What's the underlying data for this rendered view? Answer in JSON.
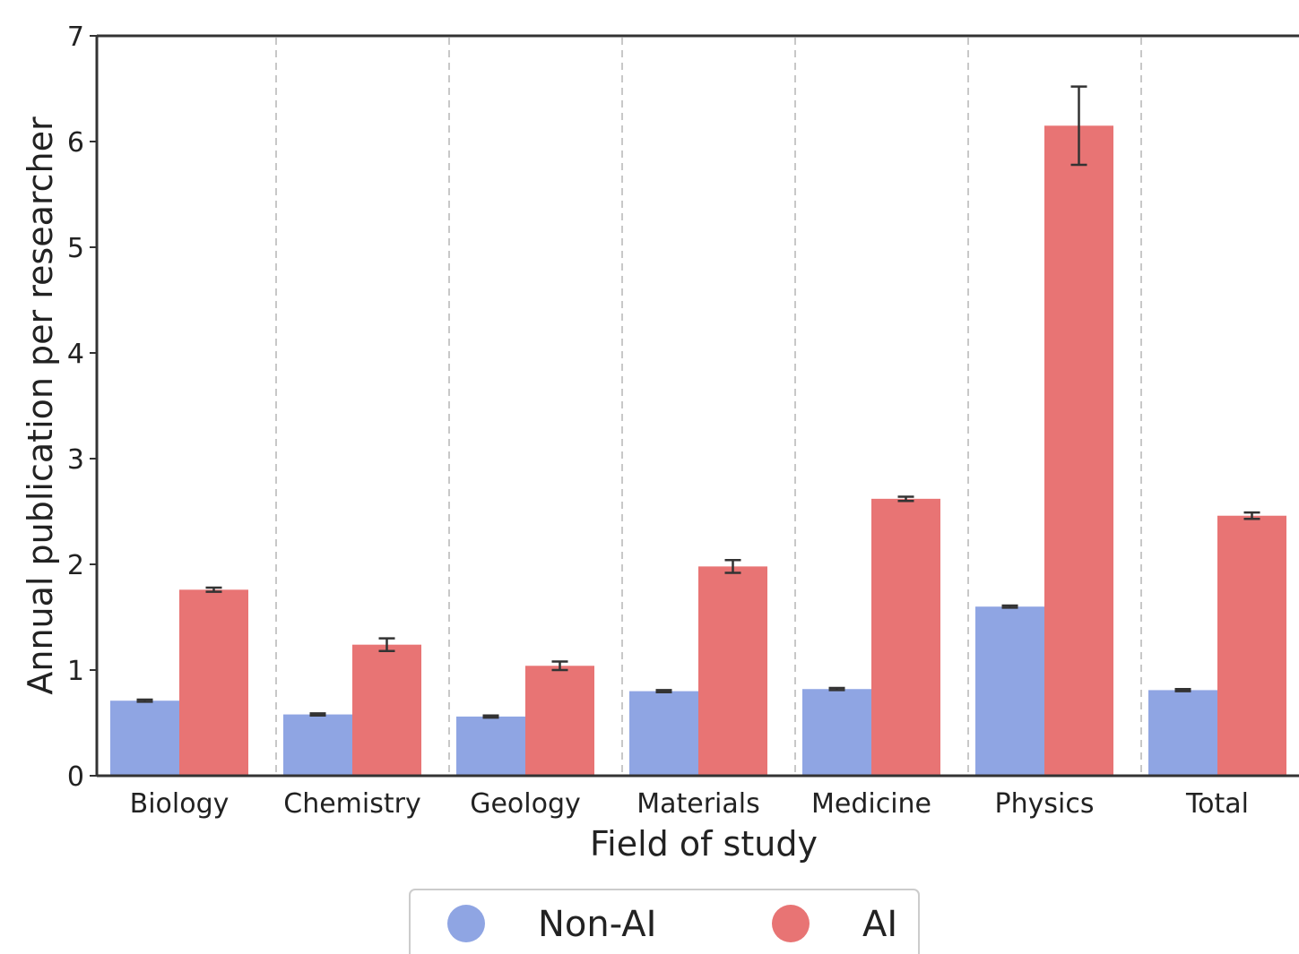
{
  "chart_data": {
    "type": "bar",
    "title": "",
    "xlabel": "Field of study",
    "ylabel": "Annual publication per researcher",
    "categories": [
      "Biology",
      "Chemistry",
      "Geology",
      "Materials",
      "Medicine",
      "Physics",
      "Total"
    ],
    "series": [
      {
        "name": "Non-AI",
        "color": "#8fa5e3",
        "values": [
          0.71,
          0.58,
          0.56,
          0.8,
          0.82,
          1.6,
          0.81
        ],
        "errors": [
          0.01,
          0.01,
          0.01,
          0.01,
          0.01,
          0.01,
          0.01
        ]
      },
      {
        "name": "AI",
        "color": "#e87474",
        "values": [
          1.76,
          1.24,
          1.04,
          1.98,
          2.62,
          6.15,
          2.46
        ],
        "errors": [
          0.02,
          0.06,
          0.04,
          0.06,
          0.02,
          0.37,
          0.03
        ]
      }
    ],
    "ylim": [
      0,
      7
    ],
    "yticks": [
      0,
      1,
      2,
      3,
      4,
      5,
      6,
      7
    ],
    "category_separators": "dashed",
    "legend": {
      "position": "bottom-center"
    }
  }
}
